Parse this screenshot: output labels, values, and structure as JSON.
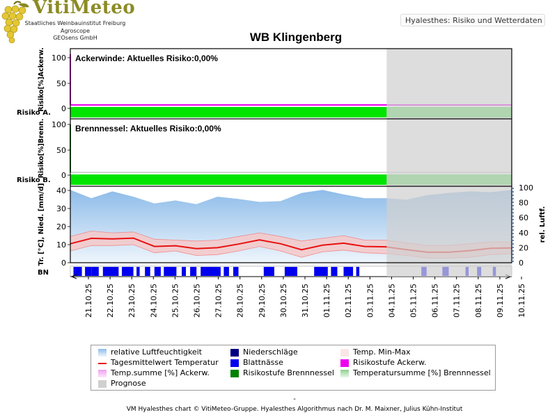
{
  "brand": {
    "name": "VitiMeteo",
    "lines": [
      "Staatliches Weinbauinstitut Freiburg",
      "Agroscope",
      "GEOsens GmbH"
    ]
  },
  "header": {
    "label": "Hyalesthes: Risiko und Wetterdaten"
  },
  "colors": {
    "risk_green": "#00e400",
    "risk_green_light": "#5fe05f",
    "prognose_gray": "#d0d0d0",
    "humidity_blue": "#a9cbee",
    "temp_red": "#e81010",
    "temp_band": "#f6c8c8",
    "blattnaesse": "#0000ee",
    "niederschlag": "#000080",
    "acker_magenta": "#ee00ee",
    "brenn_green": "#008000"
  },
  "chart_data": {
    "type": "multi-panel",
    "title": "WB Klingenberg",
    "x_dates": [
      "21.10.25",
      "22.10.25",
      "23.10.25",
      "24.10.25",
      "25.10.25",
      "26.10.25",
      "27.10.25",
      "28.10.25",
      "29.10.25",
      "30.10.25",
      "31.10.25",
      "01.11.25",
      "02.11.25",
      "03.11.25",
      "04.11.25",
      "05.11.25",
      "06.11.25",
      "07.11.25",
      "08.11.25",
      "09.11.25",
      "10.11.25"
    ],
    "prognose_start": "04.11.25",
    "panels": [
      {
        "name": "Ackerwinde",
        "label": "Ackerwinde: Aktuelles Risiko:0,00%",
        "ylabel": "Risiko[%]Ackerw.",
        "yticks": [
          "100",
          "50",
          "0"
        ],
        "ylim": [
          0,
          100
        ],
        "risk_row_label": "Risiko A.",
        "current_risk": 0.0
      },
      {
        "name": "Brennnessel",
        "label": "Brennnessel: Aktuelles Risiko:0,00%",
        "ylabel": "Risiko[%]Brenn.",
        "yticks": [
          "100",
          "50",
          "0"
        ],
        "ylim": [
          0,
          100
        ],
        "risk_row_label": "Risiko B.",
        "current_risk": 0.0
      },
      {
        "name": "weather",
        "ylabel_left": "Tr. [°C], Nied. [mm/d]",
        "ylabel_right": "rel. Luftf.",
        "yticks_left": [
          "40",
          "30",
          "20",
          "10",
          "0"
        ],
        "yticks_right": [
          "100",
          "80",
          "60",
          "40",
          "20",
          "0"
        ],
        "ylim_left": [
          0,
          40
        ],
        "ylim_right": [
          0,
          100
        ],
        "humidity": [
          97,
          86,
          95,
          88,
          79,
          83,
          78,
          88,
          85,
          81,
          82,
          93,
          97,
          91,
          86,
          86,
          84,
          90,
          93,
          95,
          94,
          97
        ],
        "temp_mean": [
          10.5,
          13.5,
          13.2,
          13.6,
          9.0,
          9.4,
          7.8,
          8.3,
          10.3,
          12.6,
          10.5,
          7.2,
          9.7,
          10.8,
          9.0,
          8.8,
          7.2,
          5.8,
          5.8,
          6.7,
          8.0,
          8.2
        ],
        "temp_max": [
          14.5,
          17.5,
          16.5,
          17.0,
          13.0,
          12.5,
          12.0,
          12.5,
          14.5,
          16.5,
          14.5,
          12.0,
          13.5,
          15.0,
          12.5,
          12.5,
          11.0,
          9.5,
          9.5,
          10.5,
          11.5,
          11.5
        ],
        "temp_min": [
          6.5,
          9.5,
          9.5,
          10.0,
          5.5,
          6.5,
          4.0,
          4.5,
          6.5,
          9.0,
          6.5,
          3.0,
          6.0,
          7.0,
          5.5,
          5.0,
          4.0,
          2.5,
          2.5,
          3.0,
          4.5,
          5.0
        ]
      }
    ],
    "bn_label": "BN",
    "blattnaesse_spans": [
      [
        0.15,
        0.55
      ],
      [
        0.7,
        1.0
      ],
      [
        1.0,
        1.35
      ],
      [
        1.55,
        2.3
      ],
      [
        2.45,
        3.0
      ],
      [
        3.15,
        3.3
      ],
      [
        3.55,
        3.8
      ],
      [
        4.0,
        4.3
      ],
      [
        4.45,
        5.05
      ],
      [
        5.3,
        5.5
      ],
      [
        5.7,
        6.0
      ],
      [
        6.2,
        7.15
      ],
      [
        7.3,
        7.55
      ],
      [
        7.75,
        8.0
      ],
      [
        9.2,
        9.7
      ],
      [
        10.2,
        10.8
      ],
      [
        11.6,
        12.25
      ],
      [
        12.4,
        12.7
      ],
      [
        13.0,
        13.45
      ],
      [
        13.6,
        13.75
      ],
      [
        16.7,
        16.95
      ],
      [
        17.7,
        18.0
      ],
      [
        18.8,
        18.95
      ],
      [
        19.35,
        19.55
      ],
      [
        20.1,
        20.25
      ]
    ],
    "legend": [
      {
        "label": "relative Luftfeuchtigkeit",
        "swatch": "humidity"
      },
      {
        "label": "Niederschläge",
        "swatch": "niederschlag"
      },
      {
        "label": "Temp. Min-Max",
        "swatch": "tempband"
      },
      {
        "label": "Tagesmittelwert Temperatur",
        "swatch": "templine"
      },
      {
        "label": "Blattnässe",
        "swatch": "blattnaesse"
      },
      {
        "label": "Risikostufe Ackerw.",
        "swatch": "acker"
      },
      {
        "label": "Temp.summe [%] Ackerw.",
        "swatch": "acker_grad"
      },
      {
        "label": "Risikostufe Brennnessel",
        "swatch": "brenn"
      },
      {
        "label": "Temperatursumme [%] Brennnessel",
        "swatch": "brenn_grad"
      },
      {
        "label": "Prognose",
        "swatch": "prognose"
      }
    ]
  },
  "footer": {
    "dash": "-",
    "text": "VM Hyalesthes chart © VitiMeteo-Gruppe. Hyalesthes Algorithmus nach Dr. M. Maixner, Julius Kühn-Institut"
  }
}
